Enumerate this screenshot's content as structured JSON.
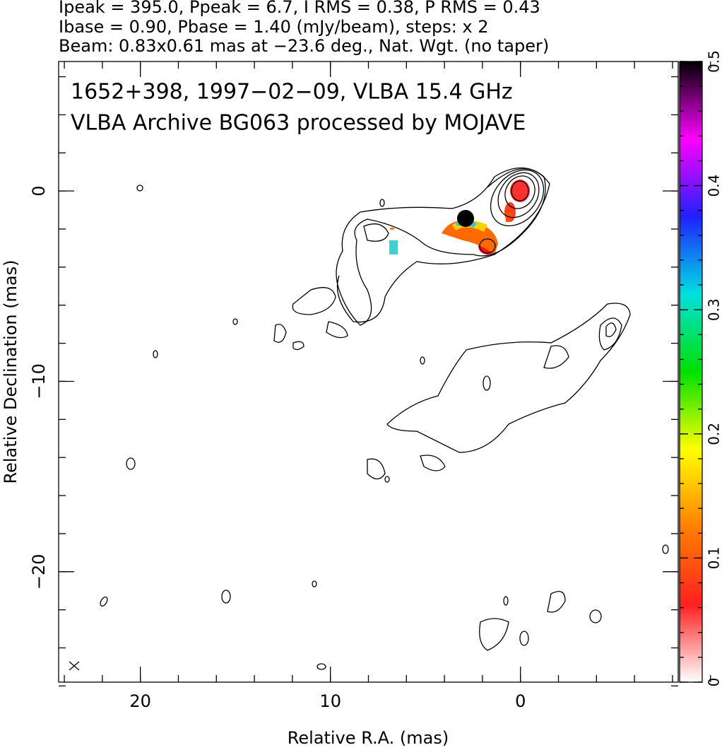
{
  "chart_data": {
    "type": "contour",
    "header": [
      "Ipeak = 395.0, Ppeak = 6.7, I RMS = 0.38, P RMS = 0.43",
      "Ibase = 0.90, Pbase = 1.40 (mJy/beam), steps: x 2",
      "Beam: 0.83x0.61 mas at −23.6 deg., Nat. Wgt. (no taper)"
    ],
    "annotation": [
      "1652+398, 1997−02−09, VLBA 15.4 GHz",
      "VLBA Archive BG063 processed by MOJAVE"
    ],
    "xlabel": "Relative R.A. (mas)",
    "ylabel": "Relative Declination (mas)",
    "xlim": [
      24.3,
      -8.3
    ],
    "ylim": [
      -25.8,
      6.8
    ],
    "xticks": [
      20,
      10,
      0
    ],
    "yticks": [
      {
        "value": -20,
        "label": "−20"
      },
      {
        "value": -10,
        "label": "−10"
      },
      0
    ],
    "colorbar": {
      "lim": [
        0,
        0.5
      ],
      "ticks": [
        0,
        0.1,
        0.2,
        0.3,
        0.4,
        0.5
      ],
      "colors": [
        "#ffffff",
        "#ff2020",
        "#ff8000",
        "#ffff00",
        "#00e000",
        "#00e0e0",
        "#2020ff",
        "#ff00ff",
        "#000000"
      ]
    }
  }
}
